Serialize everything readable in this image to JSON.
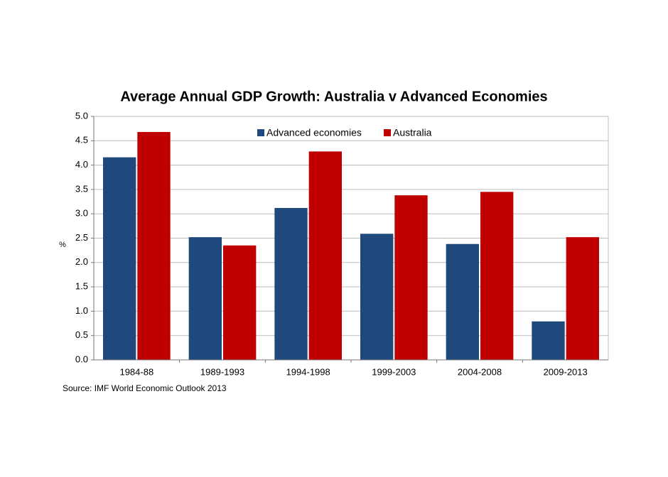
{
  "chart_data": {
    "type": "bar",
    "title": "Average Annual GDP Growth: Australia v Advanced Economies",
    "y_label": "%",
    "source": "Source: IMF World Economic Outlook 2013",
    "categories": [
      "1984-88",
      "1989-1993",
      "1994-1998",
      "1999-2003",
      "2004-2008",
      "2009-2013"
    ],
    "series": [
      {
        "name": "Advanced economies",
        "color": "#1f497d",
        "values": [
          4.16,
          2.52,
          3.12,
          2.59,
          2.38,
          0.79
        ]
      },
      {
        "name": "Australia",
        "color": "#c00000",
        "values": [
          4.68,
          2.35,
          4.28,
          3.38,
          3.45,
          2.52
        ]
      }
    ],
    "ylim": [
      0,
      5
    ],
    "yticks": [
      {
        "value": 0,
        "label": "0.0"
      },
      0.5,
      {
        "value": 1,
        "label": "1.0"
      },
      1.5,
      {
        "value": 2,
        "label": "2.0"
      },
      2.5,
      {
        "value": 3,
        "label": "3.0"
      },
      3.5,
      {
        "value": 4,
        "label": "4.0"
      },
      4.5,
      {
        "value": 5,
        "label": "5.0"
      }
    ],
    "grid": true,
    "legend": "top"
  }
}
